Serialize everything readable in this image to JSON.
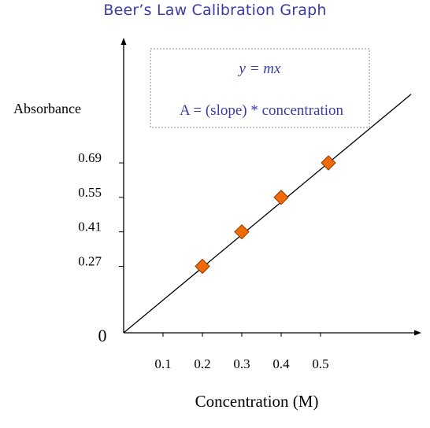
{
  "chart_data": {
    "type": "scatter",
    "title": "Beer’s Law Calibration Graph",
    "xlabel": "Concentration (M)",
    "ylabel": "Absorbance",
    "origin_label": "0",
    "x_ticks": [
      0.1,
      0.2,
      0.3,
      0.4,
      0.5
    ],
    "x_tick_labels": [
      "0.1",
      "0.2",
      "0.3",
      "0.4",
      "0.5"
    ],
    "y_ticks": [
      0.27,
      0.41,
      0.55,
      0.69
    ],
    "y_tick_labels": [
      "0.27",
      "0.41",
      "0.55",
      "0.69"
    ],
    "series": [
      {
        "x": [
          0.2,
          0.3,
          0.4,
          0.52
        ],
        "y": [
          0.27,
          0.41,
          0.55,
          0.69
        ],
        "marker": "diamond",
        "color": "#f26a07"
      }
    ],
    "trendline": {
      "type": "linear",
      "through_origin": true,
      "color": "#000000"
    },
    "annotation": {
      "line1": "y = mx",
      "line2": "A = (slope) * concentration",
      "color": "#3a3aa8"
    }
  }
}
